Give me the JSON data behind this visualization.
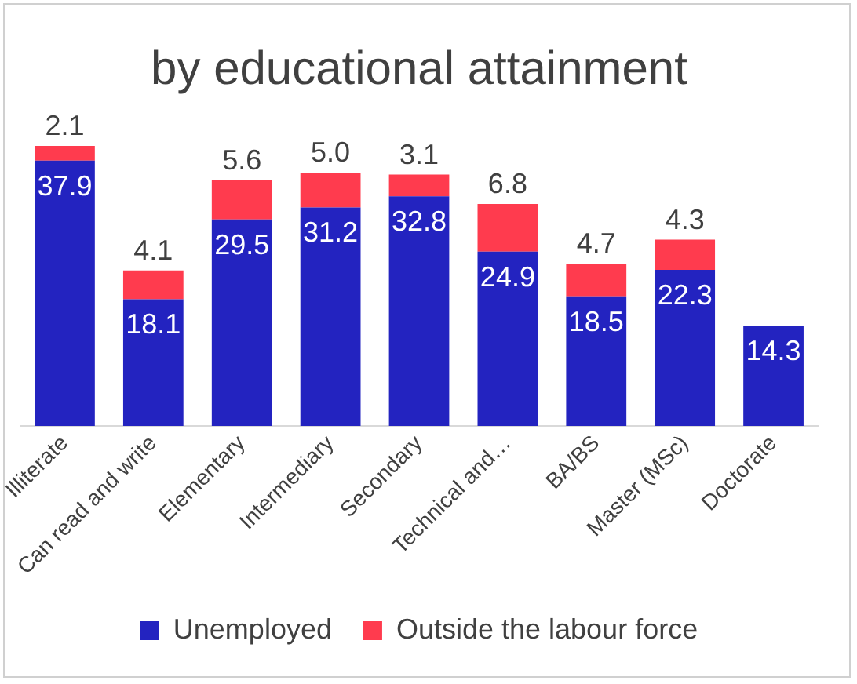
{
  "chart_data": {
    "type": "bar",
    "title": "by educational attainment",
    "stacked": true,
    "legend": "bottom",
    "grid": false,
    "categories": [
      "Illiterate",
      "Can read and write",
      "Elementary",
      "Intermediary",
      "Secondary",
      "Technical and…",
      "BA/BS",
      "Master (MSc)",
      "Doctorate"
    ],
    "series": [
      {
        "name": "Unemployed",
        "color": "#2323c0",
        "values": [
          37.9,
          18.1,
          29.5,
          31.2,
          32.8,
          24.9,
          18.5,
          22.3,
          14.3
        ],
        "value_labels": [
          "37.9",
          "18.1",
          "29.5",
          "31.2",
          "32.8",
          "24.9",
          "18.5",
          "22.3",
          "14.3"
        ]
      },
      {
        "name": "Outside the labour force",
        "color": "#ff3b4e",
        "values": [
          2.1,
          4.1,
          5.6,
          5.0,
          3.1,
          6.8,
          4.7,
          4.3,
          null
        ],
        "value_labels": [
          "2.1",
          "4.1",
          "5.6",
          "5.0",
          "3.1",
          "6.8",
          "4.7",
          "4.3",
          null
        ]
      }
    ]
  }
}
